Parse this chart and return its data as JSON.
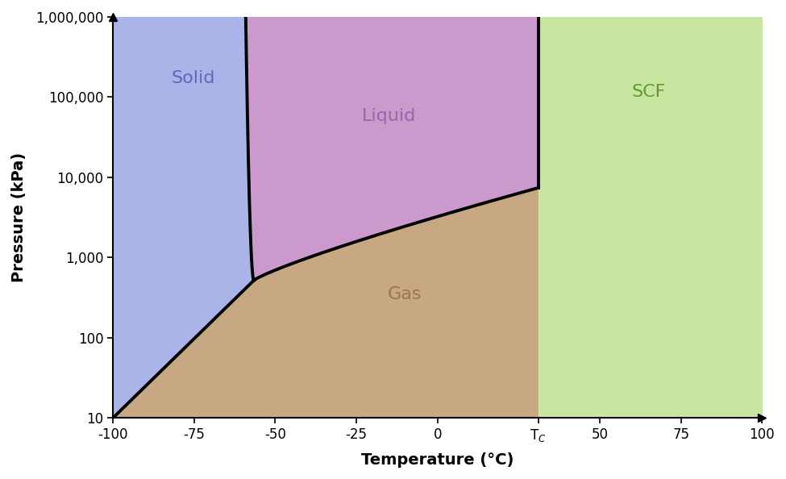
{
  "xlabel": "Temperature (°C)",
  "ylabel": "Pressure (kPa)",
  "xlim": [
    -100,
    100
  ],
  "Tc": 31,
  "Pc": 7380,
  "tp_T": -56.6,
  "tp_P": 518,
  "color_solid": "#aab4e8",
  "color_liquid": "#cc99cc",
  "color_gas": "#c8a882",
  "color_scf": "#c8e6a0",
  "label_solid": "Solid",
  "label_liquid": "Liquid",
  "label_gas": "Gas",
  "label_scf": "SCF",
  "line_color": "black",
  "line_width": 2.8,
  "figsize": [
    9.75,
    5.94
  ],
  "dpi": 100,
  "background": "white",
  "text_color_solid": "#6666bb",
  "text_color_liquid": "#9966aa",
  "text_color_gas": "#997755",
  "text_color_scf": "#669933"
}
